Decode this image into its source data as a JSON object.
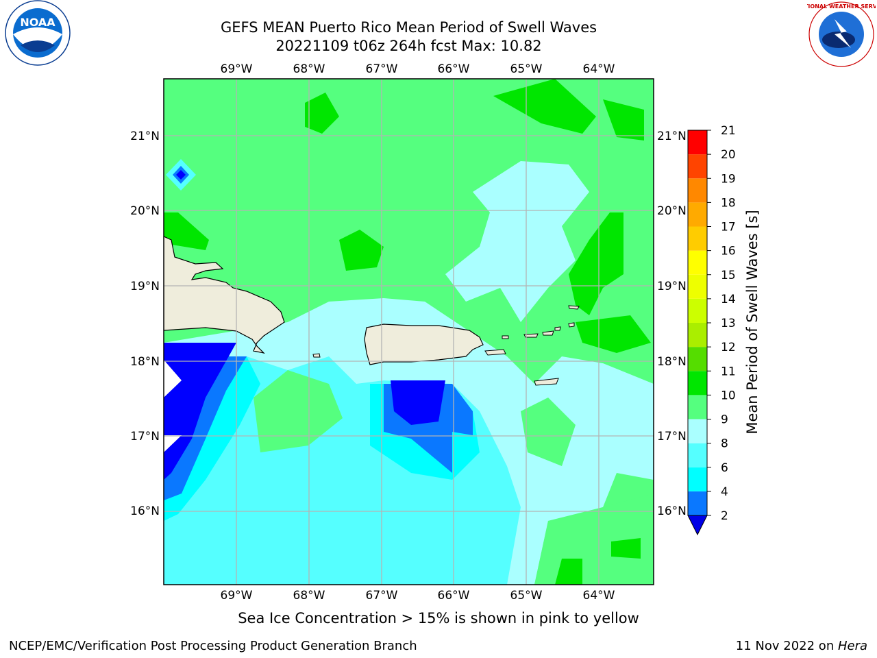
{
  "title_line1": "GEFS MEAN Puerto Rico Mean Period of Swell Waves",
  "title_line2": "20221109 t06z 264h fcst   Max: 10.82",
  "note": "Sea Ice Concentration > 15% is shown in pink to yellow",
  "footer_left": "NCEP/EMC/Verification Post Processing Product Generation Branch",
  "footer_date": "11 Nov 2022 on ",
  "footer_host": "Hera",
  "logos": {
    "left": "NOAA",
    "right": "NATIONAL WEATHER SERVICE"
  },
  "map": {
    "lon_range": [
      -70,
      -63.25
    ],
    "lat_range": [
      15,
      21.75
    ],
    "lon_ticks": [
      "69°W",
      "68°W",
      "67°W",
      "66°W",
      "65°W",
      "64°W"
    ],
    "lon_tick_values": [
      -69,
      -68,
      -67,
      -66,
      -65,
      -64
    ],
    "lat_ticks": [
      "16°N",
      "17°N",
      "18°N",
      "19°N",
      "20°N",
      "21°N"
    ],
    "lat_tick_values": [
      16,
      17,
      18,
      19,
      20,
      21
    ],
    "land_color": "#efeddc",
    "grid_color": "#b4b4b4"
  },
  "colorbar": {
    "label": "Mean Period of Swell Waves [s]",
    "levels": [
      2,
      4,
      6,
      8,
      9,
      10,
      11,
      12,
      13,
      14,
      15,
      16,
      17,
      18,
      19,
      20,
      21
    ],
    "colors": [
      "#0000ff",
      "#0a78ff",
      "#00ffff",
      "#55ffff",
      "#aaffff",
      "#55ff7f",
      "#00e600",
      "#55dd00",
      "#aaee00",
      "#ccff00",
      "#eeff00",
      "#ffff00",
      "#ffcc00",
      "#ffaa00",
      "#ff8800",
      "#ff4400",
      "#ff0000"
    ],
    "under_color": "#0000e6"
  }
}
